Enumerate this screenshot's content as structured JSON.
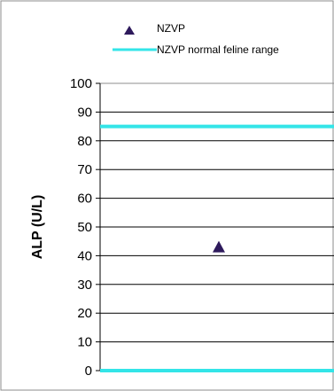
{
  "chart_data": {
    "type": "scatter",
    "title": "",
    "xlabel": "",
    "ylabel": "ALP (U/L)",
    "ylim": [
      0,
      100
    ],
    "y_ticks": [
      "0",
      "10",
      "20",
      "30",
      "40",
      "50",
      "60",
      "70",
      "80",
      "90",
      "100"
    ],
    "grid": true,
    "legend_position": "top",
    "series": [
      {
        "name": "NZVP",
        "kind": "marker",
        "marker": "triangle",
        "color": "#2e1a5c",
        "values": [
          43
        ]
      },
      {
        "name": "NZVP normal feline range",
        "kind": "reference-lines",
        "color": "#33e5e8",
        "values": [
          0,
          85
        ]
      }
    ]
  }
}
